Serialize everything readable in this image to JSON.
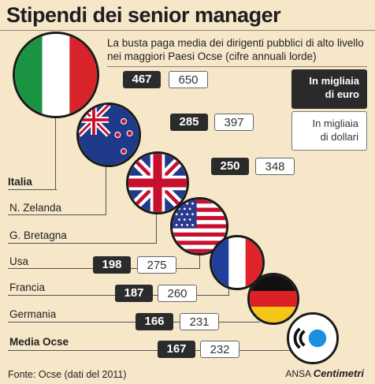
{
  "title": "Stipendi dei senior manager",
  "subtitle": "La busta paga media dei dirigenti pubblici di alto livello nei maggiori Paesi Ocse (cifre annuali lorde)",
  "legend": {
    "euro_line1": "In migliaia",
    "euro_line2": "di euro",
    "dollar_line1": "In migliaia",
    "dollar_line2": "di dollari",
    "euro_color": "#2b2b2b",
    "dollar_color": "#ffffff"
  },
  "chart_data": {
    "type": "table",
    "columns": [
      "In migliaia di euro",
      "In migliaia di dollari"
    ],
    "rows": [
      {
        "country": "Italia",
        "eur": "467",
        "usd": "650",
        "flag": "italy-flag-icon"
      },
      {
        "country": "N. Zelanda",
        "eur": "285",
        "usd": "397",
        "flag": "new-zealand-flag-icon"
      },
      {
        "country": "G. Bretagna",
        "eur": "250",
        "usd": "348",
        "flag": "uk-flag-icon"
      },
      {
        "country": "Usa",
        "eur": "198",
        "usd": "275",
        "flag": "usa-flag-icon"
      },
      {
        "country": "Francia",
        "eur": "187",
        "usd": "260",
        "flag": "france-flag-icon"
      },
      {
        "country": "Germania",
        "eur": "166",
        "usd": "231",
        "flag": "germany-flag-icon"
      },
      {
        "country": "Media Ocse",
        "eur": "167",
        "usd": "232",
        "flag": "oecd-logo-icon"
      }
    ]
  },
  "footer": {
    "source": "Fonte: Ocse (dati del 2011)",
    "brand_ansa": "ANSA",
    "brand_name": "Centimetri"
  }
}
